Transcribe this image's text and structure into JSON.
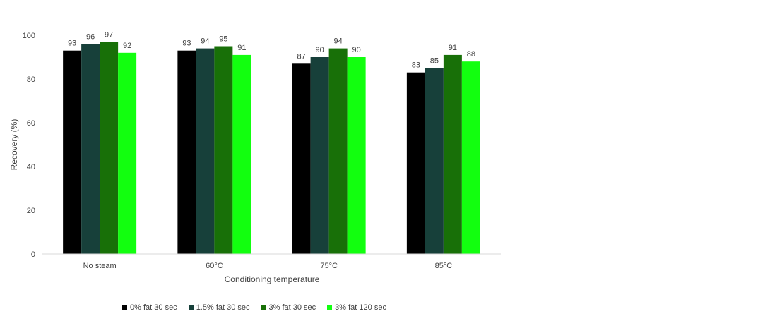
{
  "chart_data": {
    "type": "bar",
    "categories": [
      "No steam",
      "60°C",
      "75°C",
      "85°C"
    ],
    "series": [
      {
        "name": "0% fat 30 sec",
        "values": [
          93,
          93,
          87,
          83
        ],
        "color": "#000000"
      },
      {
        "name": "1.5% fat 30 sec",
        "values": [
          96,
          94,
          90,
          85
        ],
        "color": "#17403a"
      },
      {
        "name": "3% fat 30 sec",
        "values": [
          97,
          95,
          94,
          91
        ],
        "color": "#187008"
      },
      {
        "name": "3% fat 120 sec",
        "values": [
          92,
          91,
          90,
          88
        ],
        "color": "#12ff0f"
      }
    ],
    "xlabel": "Conditioning temperature",
    "ylabel": "Recovery (%)",
    "ylim": [
      0,
      100
    ],
    "yticks": [
      0,
      20,
      40,
      60,
      80,
      100
    ],
    "grid": false,
    "legend_position": "bottom"
  }
}
